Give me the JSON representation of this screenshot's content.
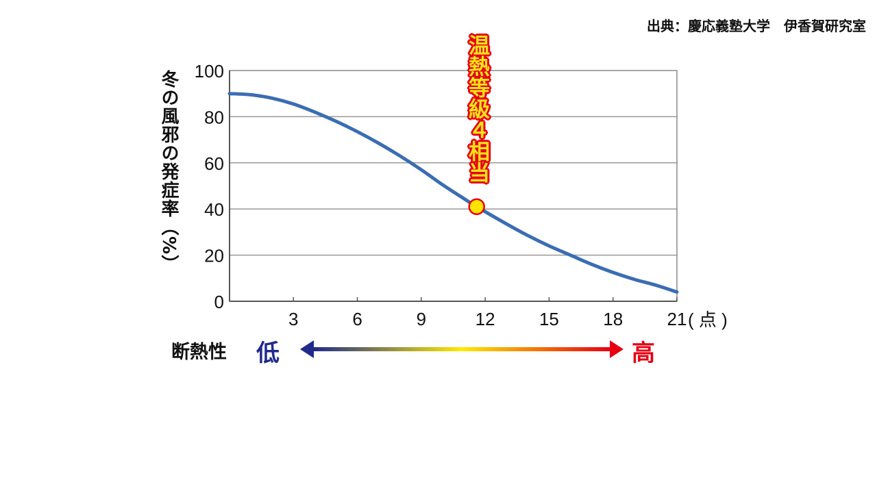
{
  "source_text": "出典：慶応義塾大学　伊香賀研究室",
  "chart_data": {
    "type": "line",
    "title": "",
    "ylabel": "冬の風邪の発症率（%）",
    "xlabel": "",
    "x_unit_label": "( 点 )",
    "ylim": [
      0,
      100
    ],
    "xlim": [
      0,
      21
    ],
    "y_ticks": [
      "0",
      "20",
      "40",
      "60",
      "80",
      "100"
    ],
    "x_ticks": [
      "3",
      "6",
      "9",
      "12",
      "15",
      "18",
      "21"
    ],
    "grid": "horizontal",
    "series": [
      {
        "color": "#3a6db3",
        "x": [
          0,
          1,
          2,
          3,
          4,
          5,
          6,
          7,
          8,
          9,
          10,
          11,
          11.6,
          13,
          14,
          15,
          16,
          17,
          18,
          19,
          20,
          21
        ],
        "y": [
          90,
          89.5,
          88,
          85.5,
          82,
          78,
          73.5,
          68.5,
          63,
          57,
          50.5,
          44.5,
          41,
          33.5,
          28.5,
          24,
          20,
          16,
          12.5,
          9.5,
          7,
          4
        ]
      }
    ],
    "marker": {
      "x": 11.6,
      "y": 41,
      "fill": "#ffe400",
      "stroke": "#e60012"
    },
    "annotation": "温熱等級４相当"
  },
  "axis_bar": {
    "label": "断熱性",
    "low": "低",
    "high": "高",
    "gradient": [
      "#1f2a8c",
      "#ffea00",
      "#e60012"
    ]
  }
}
